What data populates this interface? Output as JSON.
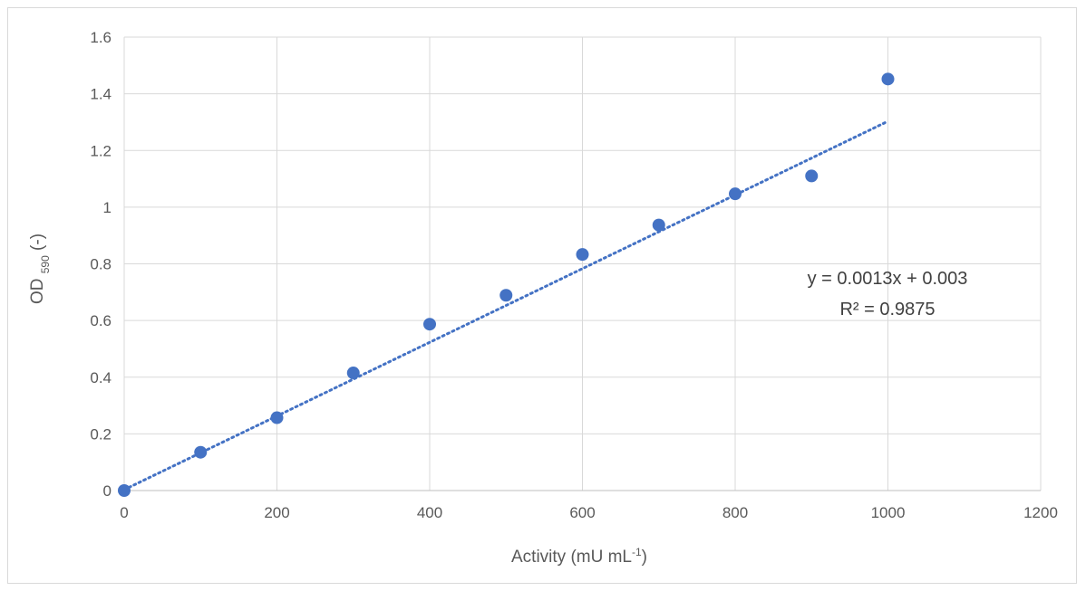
{
  "chart_data": {
    "type": "scatter",
    "title": "",
    "xlabel": {
      "main": "Activity (mU mL",
      "sup": "-1",
      "end": ")"
    },
    "ylabel": {
      "main": "OD ",
      "sub": "590",
      "end": " (-)"
    },
    "xlim": [
      0,
      1200
    ],
    "ylim": [
      0,
      1.6
    ],
    "x_ticks": [
      "0",
      "200",
      "400",
      "600",
      "800",
      "1000",
      "1200"
    ],
    "y_ticks": [
      "0",
      "0.2",
      "0.4",
      "0.6",
      "0.8",
      "1",
      "1.2",
      "1.4",
      "1.6"
    ],
    "grid": true,
    "series": [
      {
        "x": [
          0,
          100,
          200,
          300,
          400,
          500,
          600,
          700,
          800,
          900,
          1000
        ],
        "y": [
          0.0,
          0.135,
          0.257,
          0.415,
          0.587,
          0.689,
          0.833,
          0.937,
          1.047,
          1.11,
          1.452
        ],
        "color": "#4472c4"
      }
    ],
    "trendline": {
      "type": "linear",
      "slope": 0.0013,
      "intercept": 0.003,
      "x_range": [
        0,
        1000
      ],
      "color": "#4472c4",
      "style": "dotted",
      "equation": "y = 0.0013x + 0.003",
      "r_squared": "R² = 0.9875"
    }
  }
}
